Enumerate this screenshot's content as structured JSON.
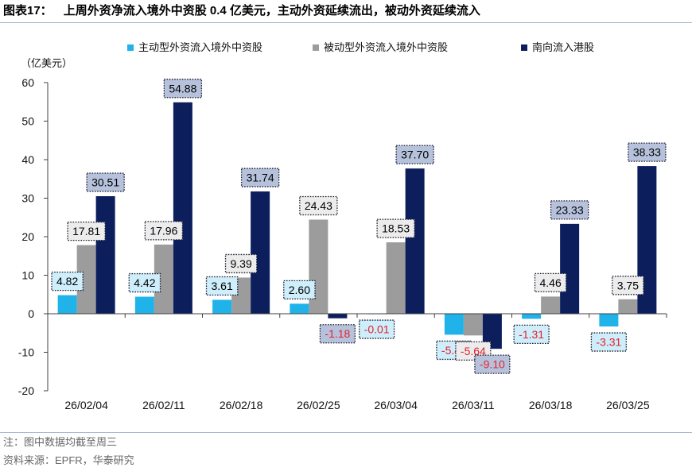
{
  "figure": {
    "number": "图表17：",
    "title": "上周外资净流入境外中资股 0.4 亿美元，主动外资延续流出，被动外资延续流入",
    "note": "注：图中数据均截至周三",
    "source": "资料来源：EPFR，华泰研究"
  },
  "chart_data": {
    "type": "bar",
    "ylabel": "（亿美元）",
    "xlabel": "",
    "ylim": [
      -20,
      60
    ],
    "yticks": [
      60,
      50,
      40,
      30,
      20,
      10,
      0,
      -10,
      -20
    ],
    "grid": false,
    "legend": "top",
    "negative_label_color": "#e5212b",
    "categories": [
      "26/02/04",
      "26/02/11",
      "26/02/18",
      "26/02/25",
      "26/03/04",
      "26/03/11",
      "26/03/18",
      "26/03/25"
    ],
    "series": [
      {
        "name": "主动型外资流入境外中资股",
        "color": "#1fb3ea",
        "label_bg": "#cdeefa",
        "values": [
          4.82,
          4.42,
          3.61,
          2.6,
          -0.01,
          -5.45,
          -1.31,
          -3.31
        ],
        "labels": [
          "4.82",
          "4.42",
          "3.61",
          "2.60",
          "-0.01",
          "-5.45",
          "-1.31",
          "-3.31"
        ]
      },
      {
        "name": "被动型外资流入境外中资股",
        "color": "#9c9c9c",
        "label_bg": "#ececec",
        "values": [
          17.81,
          17.96,
          9.39,
          24.43,
          18.53,
          -5.64,
          4.46,
          3.75
        ],
        "labels": [
          "17.81",
          "17.96",
          "9.39",
          "24.43",
          "18.53",
          "-5.64",
          "4.46",
          "3.75"
        ]
      },
      {
        "name": "南向流入港股",
        "color": "#0c1f5c",
        "label_bg": "#b6c2dc",
        "values": [
          30.51,
          54.88,
          31.74,
          -1.18,
          37.7,
          -9.1,
          23.33,
          38.33
        ],
        "labels": [
          "30.51",
          "54.88",
          "31.74",
          "-1.18",
          "37.70",
          "-9.10",
          "23.33",
          "38.33"
        ]
      }
    ]
  }
}
